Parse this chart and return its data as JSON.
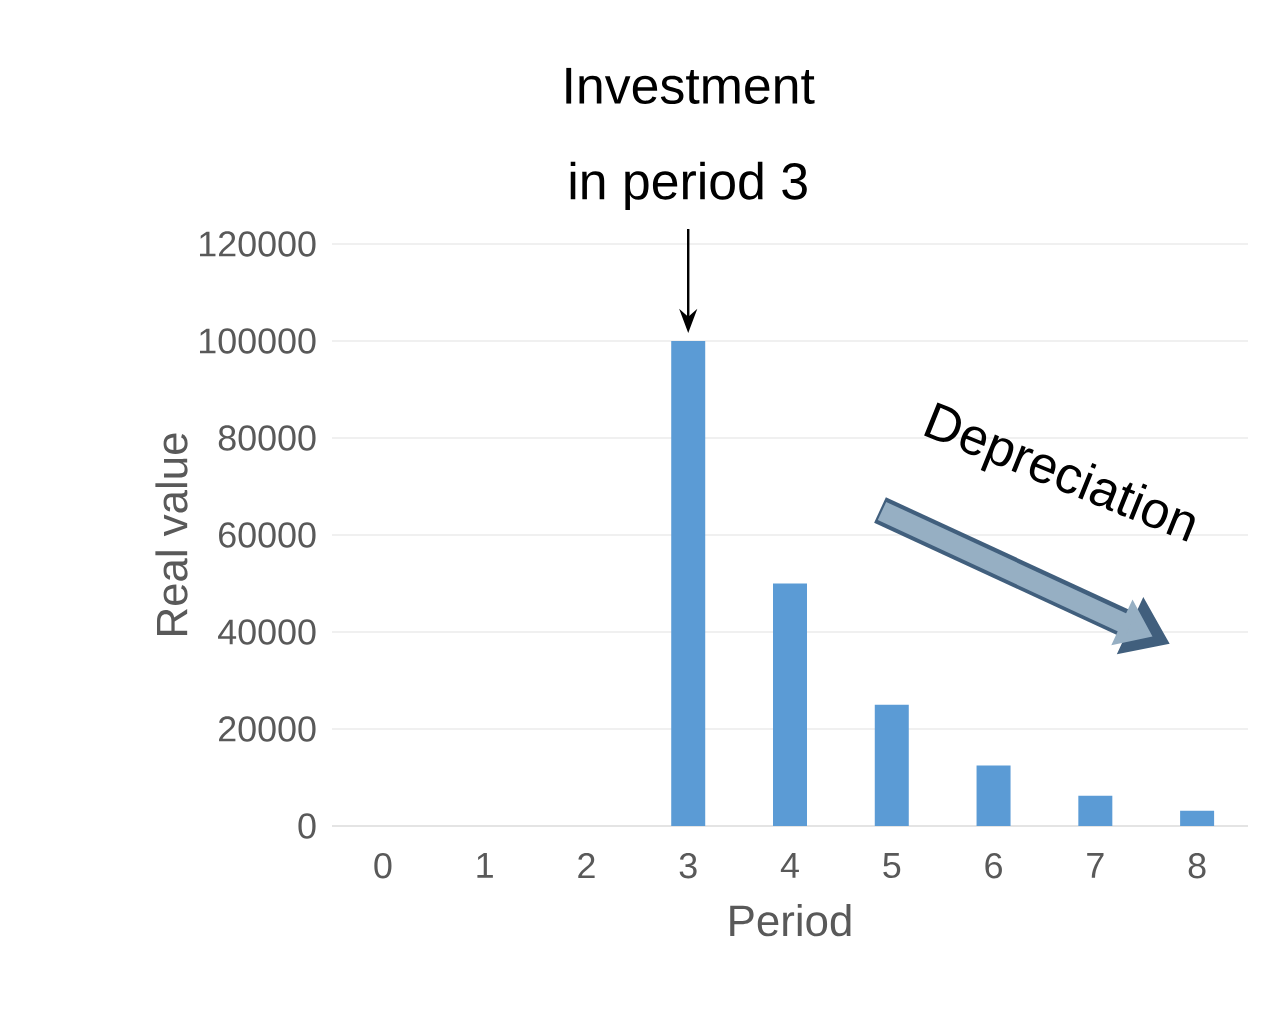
{
  "chart_data": {
    "type": "bar",
    "categories": [
      "0",
      "1",
      "2",
      "3",
      "4",
      "5",
      "6",
      "7",
      "8"
    ],
    "values": [
      0,
      0,
      0,
      100000,
      50000,
      25000,
      12500,
      6250,
      3125
    ],
    "color": "#5b9bd5",
    "xlabel": "Period",
    "ylabel": "Real value",
    "ylim": [
      0,
      120000
    ],
    "yticks": [
      0,
      20000,
      40000,
      60000,
      80000,
      100000,
      120000
    ],
    "grid": "y",
    "annotations": [
      {
        "text": "Investment in period 3",
        "x": "3",
        "y": 100000
      },
      "Depreciation"
    ]
  }
}
